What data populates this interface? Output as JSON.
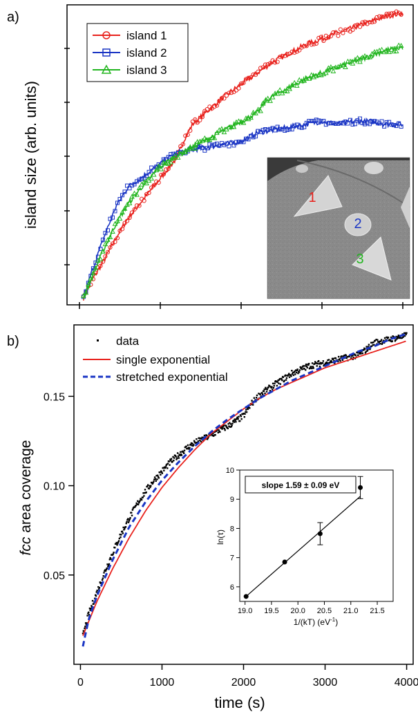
{
  "chart_data": [
    {
      "panel": "a)",
      "type": "line",
      "xlabel": "",
      "ylabel": "island size (arb. units)",
      "xlim": [
        0,
        4000
      ],
      "ylim": [
        0,
        1.0
      ],
      "x_ticks_labeled": false,
      "y_ticks_labeled": false,
      "legend_position": "top-left",
      "series": [
        {
          "name": "island 1",
          "color": "#e8211c",
          "marker": "circle",
          "x": [
            50,
            150,
            300,
            450,
            600,
            800,
            1000,
            1200,
            1300,
            1400,
            1600,
            1800,
            2000,
            2200,
            2400,
            2600,
            2800,
            3000,
            3200,
            3400,
            3600,
            3800,
            4000
          ],
          "y": [
            0.0,
            0.06,
            0.13,
            0.21,
            0.28,
            0.35,
            0.42,
            0.49,
            0.56,
            0.61,
            0.66,
            0.71,
            0.75,
            0.79,
            0.83,
            0.86,
            0.89,
            0.91,
            0.93,
            0.95,
            0.97,
            0.99,
            1.0
          ]
        },
        {
          "name": "island 2",
          "color": "#1a35c4",
          "marker": "square",
          "x": [
            50,
            150,
            300,
            450,
            600,
            800,
            1000,
            1200,
            1400,
            1600,
            1800,
            2000,
            2200,
            2400,
            2600,
            2800,
            3000,
            3200,
            3400,
            3600,
            3800,
            4000
          ],
          "y": [
            0.0,
            0.09,
            0.21,
            0.32,
            0.39,
            0.43,
            0.47,
            0.51,
            0.52,
            0.53,
            0.54,
            0.55,
            0.58,
            0.59,
            0.6,
            0.61,
            0.62,
            0.61,
            0.62,
            0.62,
            0.61,
            0.61
          ]
        },
        {
          "name": "island 3",
          "color": "#22b51f",
          "marker": "triangle",
          "x": [
            50,
            150,
            300,
            450,
            600,
            800,
            1000,
            1200,
            1400,
            1600,
            1800,
            2000,
            2200,
            2300,
            2400,
            2600,
            2800,
            3000,
            3200,
            3400,
            3600,
            3800,
            4000
          ],
          "y": [
            0.0,
            0.07,
            0.17,
            0.26,
            0.33,
            0.4,
            0.46,
            0.5,
            0.53,
            0.56,
            0.59,
            0.62,
            0.65,
            0.69,
            0.71,
            0.74,
            0.77,
            0.79,
            0.81,
            0.83,
            0.85,
            0.87,
            0.88
          ]
        }
      ],
      "inset_image_labels": [
        {
          "text": "1",
          "color": "#e8211c"
        },
        {
          "text": "2",
          "color": "#1a35c4"
        },
        {
          "text": "3",
          "color": "#22b51f"
        }
      ]
    },
    {
      "panel": "b)",
      "type": "scatter",
      "xlabel": "time (s)",
      "ylabel_italic": "fcc",
      "ylabel_rest": " area coverage",
      "xlim": [
        -80,
        4080
      ],
      "ylim": [
        0.0,
        0.19
      ],
      "x_ticks": [
        0,
        1000,
        2000,
        3000,
        4000
      ],
      "y_ticks": [
        0.05,
        0.1,
        0.15
      ],
      "legend_position": "top-left",
      "series": [
        {
          "name": "data",
          "style": "points",
          "color": "#000000",
          "x": [
            30,
            100,
            200,
            300,
            400,
            500,
            600,
            700,
            800,
            900,
            1000,
            1100,
            1200,
            1300,
            1400,
            1500,
            1600,
            1700,
            1800,
            1900,
            2000,
            2100,
            2200,
            2300,
            2400,
            2500,
            2600,
            2700,
            2800,
            2900,
            3000,
            3100,
            3200,
            3300,
            3400,
            3500,
            3600,
            3700,
            3800,
            3900,
            4000
          ],
          "y": [
            0.016,
            0.028,
            0.04,
            0.052,
            0.063,
            0.073,
            0.082,
            0.09,
            0.097,
            0.103,
            0.108,
            0.113,
            0.117,
            0.121,
            0.124,
            0.126,
            0.128,
            0.131,
            0.133,
            0.136,
            0.139,
            0.146,
            0.151,
            0.154,
            0.157,
            0.16,
            0.163,
            0.165,
            0.167,
            0.168,
            0.169,
            0.17,
            0.171,
            0.172,
            0.173,
            0.176,
            0.18,
            0.181,
            0.182,
            0.183,
            0.184
          ]
        },
        {
          "name": "single exponential",
          "style": "solid",
          "color": "#e8211c",
          "x": [
            30,
            200,
            400,
            600,
            800,
            1000,
            1200,
            1400,
            1600,
            1800,
            2000,
            2200,
            2400,
            2600,
            2800,
            3000,
            3200,
            3400,
            3600,
            3800,
            4000
          ],
          "y": [
            0.016,
            0.035,
            0.054,
            0.071,
            0.086,
            0.099,
            0.11,
            0.12,
            0.129,
            0.136,
            0.143,
            0.149,
            0.154,
            0.158,
            0.162,
            0.166,
            0.169,
            0.172,
            0.175,
            0.178,
            0.181
          ]
        },
        {
          "name": "stretched exponential",
          "style": "dashed",
          "color": "#1a35c4",
          "x": [
            30,
            100,
            200,
            400,
            600,
            800,
            1000,
            1200,
            1400,
            1600,
            1800,
            2000,
            2200,
            2400,
            2600,
            2800,
            3000,
            3200,
            3400,
            3600,
            3800,
            4000
          ],
          "y": [
            0.01,
            0.025,
            0.038,
            0.059,
            0.077,
            0.091,
            0.103,
            0.113,
            0.122,
            0.13,
            0.137,
            0.143,
            0.149,
            0.154,
            0.159,
            0.163,
            0.167,
            0.171,
            0.175,
            0.178,
            0.182,
            0.185
          ]
        }
      ],
      "inset": {
        "type": "scatter",
        "xlabel": "1/(kT) (eV",
        "xlabel_sup": "-1",
        "xlabel_end": ")",
        "ylabel": "ln(τ)",
        "xlim": [
          18.9,
          21.8
        ],
        "ylim": [
          5.5,
          10.0
        ],
        "x_ticks": [
          "19.0",
          "19.5",
          "20.0",
          "20.5",
          "21.0",
          "21.5"
        ],
        "y_ticks": [
          "6",
          "7",
          "8",
          "9",
          "10"
        ],
        "annotation": "slope 1.59 ± 0.09 eV",
        "points": [
          {
            "x": 19.02,
            "y": 5.67,
            "err": 0.05
          },
          {
            "x": 19.75,
            "y": 6.85,
            "err": 0.05
          },
          {
            "x": 20.42,
            "y": 7.82,
            "err": 0.38
          },
          {
            "x": 21.18,
            "y": 9.4,
            "err": 0.38
          }
        ],
        "fit": {
          "x": [
            19.02,
            21.18
          ],
          "y": [
            5.67,
            9.1
          ]
        }
      }
    }
  ]
}
